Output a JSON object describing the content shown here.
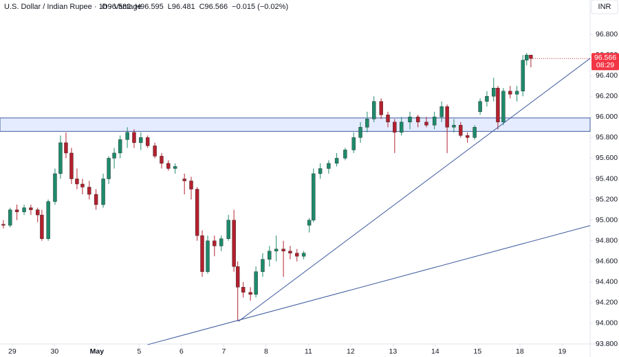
{
  "chart_data": {
    "type": "candlestick",
    "symbol": "U.S. Dollar / Indian Rupee · 1h · Vantage",
    "ohlc_text": [
      "O96.582",
      "H96.595",
      "L96.481",
      "C96.566",
      "−0.015 (−0.02%)"
    ],
    "currency": "INR",
    "last_price": 96.566,
    "countdown": "08:29",
    "up_color": "#1e8a6b",
    "down_color": "#b3202e",
    "x": [
      -0.21,
      -0.05,
      0.11,
      0.28,
      0.44,
      0.6,
      0.7,
      0.85,
      1.01,
      1.14,
      1.27,
      1.4,
      1.53,
      1.66,
      1.82,
      1.98,
      2.15,
      2.28,
      2.41,
      2.55,
      2.72,
      2.88,
      3.04,
      3.2,
      3.37,
      3.53,
      3.69,
      3.85,
      4.07,
      4.23,
      4.37,
      4.49,
      4.62,
      4.78,
      4.94,
      5.11,
      5.24,
      5.33,
      5.46,
      5.63,
      5.76,
      5.92,
      6.08,
      6.24,
      6.41,
      6.57,
      6.73,
      6.89,
      7.02,
      7.12,
      7.28,
      7.48,
      7.67,
      7.87,
      8.07,
      8.23,
      8.39,
      8.55,
      8.72,
      8.88,
      9.04,
      9.2,
      9.4,
      9.59,
      9.79,
      9.98,
      10.15,
      10.28,
      10.44,
      10.6,
      10.76,
      10.93,
      11.06,
      11.22,
      11.38,
      11.48,
      11.61,
      11.77,
      11.93,
      12.07,
      12.16,
      12.26
    ],
    "open": [
      94.96,
      94.95,
      95.1,
      95.08,
      95.12,
      95.1,
      95.05,
      94.82,
      95.18,
      95.45,
      95.75,
      95.65,
      95.4,
      95.35,
      95.32,
      95.25,
      95.15,
      95.4,
      95.6,
      95.65,
      95.78,
      95.85,
      95.75,
      95.8,
      95.72,
      95.62,
      95.55,
      95.5,
      95.4,
      95.38,
      95.3,
      94.85,
      94.5,
      94.8,
      94.75,
      94.82,
      95.0,
      94.55,
      94.35,
      94.3,
      94.28,
      94.5,
      94.62,
      94.7,
      94.72,
      94.7,
      94.68,
      94.65,
      94.95,
      95.0,
      95.45,
      95.5,
      95.55,
      95.6,
      95.68,
      95.8,
      95.9,
      95.98,
      96.15,
      96.02,
      95.95,
      95.85,
      95.95,
      96.0,
      95.95,
      95.92,
      96.0,
      96.1,
      95.9,
      95.92,
      95.82,
      95.8,
      96.05,
      96.15,
      96.2,
      96.28,
      95.95,
      96.25,
      96.22,
      96.25,
      96.55,
      96.6
    ],
    "high": [
      95.0,
      95.12,
      95.15,
      95.15,
      95.15,
      95.12,
      95.1,
      95.2,
      95.5,
      95.82,
      95.85,
      95.7,
      95.5,
      95.4,
      95.38,
      95.3,
      95.45,
      95.62,
      95.7,
      95.82,
      95.9,
      95.88,
      95.85,
      95.82,
      95.75,
      95.65,
      95.58,
      95.55,
      95.45,
      95.42,
      95.32,
      94.9,
      94.85,
      94.85,
      94.85,
      95.05,
      95.1,
      94.6,
      94.4,
      94.35,
      94.55,
      94.68,
      94.75,
      94.85,
      94.8,
      94.75,
      94.72,
      94.7,
      95.02,
      95.5,
      95.55,
      95.58,
      95.65,
      95.7,
      95.85,
      95.95,
      96.05,
      96.2,
      96.18,
      96.05,
      95.98,
      96.0,
      96.05,
      96.02,
      96.0,
      96.05,
      96.15,
      96.12,
      95.98,
      95.95,
      95.85,
      95.92,
      96.18,
      96.25,
      96.38,
      96.3,
      96.28,
      96.3,
      96.3,
      96.6,
      96.62,
      96.6
    ],
    "low": [
      94.92,
      94.93,
      95.0,
      95.05,
      95.05,
      94.98,
      94.8,
      94.8,
      95.15,
      95.4,
      95.6,
      95.35,
      95.3,
      95.25,
      95.2,
      95.1,
      95.12,
      95.35,
      95.5,
      95.6,
      95.7,
      95.7,
      95.68,
      95.7,
      95.6,
      95.5,
      95.48,
      95.45,
      95.25,
      95.2,
      94.8,
      94.45,
      94.48,
      94.65,
      94.7,
      94.8,
      94.5,
      94.02,
      94.25,
      94.22,
      94.25,
      94.45,
      94.55,
      94.6,
      94.45,
      94.62,
      94.6,
      94.62,
      94.88,
      94.98,
      95.4,
      95.45,
      95.52,
      95.58,
      95.65,
      95.75,
      95.85,
      95.95,
      95.98,
      95.9,
      95.65,
      95.82,
      95.88,
      95.9,
      95.9,
      95.88,
      95.95,
      95.65,
      95.85,
      95.8,
      95.75,
      95.78,
      96.02,
      96.1,
      96.15,
      95.88,
      95.92,
      96.18,
      96.15,
      96.2,
      96.5,
      96.48
    ],
    "close": [
      94.95,
      95.1,
      95.08,
      95.12,
      95.1,
      95.05,
      94.82,
      95.18,
      95.45,
      95.75,
      95.65,
      95.4,
      95.35,
      95.32,
      95.25,
      95.15,
      95.4,
      95.6,
      95.65,
      95.78,
      95.85,
      95.75,
      95.8,
      95.72,
      95.62,
      95.55,
      95.5,
      95.52,
      95.38,
      95.3,
      94.85,
      94.5,
      94.8,
      94.75,
      94.82,
      95.0,
      94.55,
      94.35,
      94.3,
      94.28,
      94.5,
      94.62,
      94.7,
      94.72,
      94.7,
      94.68,
      94.65,
      94.68,
      95.0,
      95.45,
      95.5,
      95.55,
      95.6,
      95.68,
      95.8,
      95.9,
      95.98,
      96.15,
      96.02,
      95.95,
      95.85,
      95.95,
      96.0,
      95.95,
      95.92,
      96.0,
      96.1,
      95.9,
      95.92,
      95.82,
      95.8,
      95.9,
      96.15,
      96.2,
      96.28,
      95.95,
      96.25,
      96.22,
      96.25,
      96.55,
      96.6,
      96.566
    ],
    "zone": {
      "y0": 95.86,
      "y1": 95.99,
      "color": "#2962ff"
    },
    "trendlines": [
      {
        "x1": 5.35,
        "y1": 94.02,
        "x2": 13.66,
        "y2": 96.567,
        "color": "#3d5a9e"
      },
      {
        "x1": 3.2,
        "y1": 93.793,
        "x2": 13.66,
        "y2": 94.947,
        "color": "#3d5a9e"
      }
    ],
    "xlim": [
      -0.29,
      13.66
    ],
    "ylim": [
      93.8,
      97.133
    ],
    "xticks": [
      {
        "value": 0,
        "label": "29"
      },
      {
        "value": 1,
        "label": "30"
      },
      {
        "value": 2,
        "label": "May"
      },
      {
        "value": 3,
        "label": "5"
      },
      {
        "value": 4,
        "label": "6"
      },
      {
        "value": 5,
        "label": "7"
      },
      {
        "value": 6,
        "label": "8"
      },
      {
        "value": 7,
        "label": "11"
      },
      {
        "value": 8,
        "label": "12"
      },
      {
        "value": 9,
        "label": "13"
      },
      {
        "value": 10,
        "label": "14"
      },
      {
        "value": 11,
        "label": "15"
      },
      {
        "value": 12,
        "label": "18"
      },
      {
        "value": 13,
        "label": "19"
      }
    ],
    "yticks": [
      {
        "value": 93.8,
        "label": "93.800"
      },
      {
        "value": 94.0,
        "label": "94.000"
      },
      {
        "value": 94.2,
        "label": "94.200"
      },
      {
        "value": 94.4,
        "label": "94.400"
      },
      {
        "value": 94.6,
        "label": "94.600"
      },
      {
        "value": 94.8,
        "label": "94.800"
      },
      {
        "value": 95.0,
        "label": "95.000"
      },
      {
        "value": 95.2,
        "label": "95.200"
      },
      {
        "value": 95.4,
        "label": "95.400"
      },
      {
        "value": 95.6,
        "label": "95.600"
      },
      {
        "value": 95.8,
        "label": "95.800"
      },
      {
        "value": 96.0,
        "label": "96.000"
      },
      {
        "value": 96.2,
        "label": "96.200"
      },
      {
        "value": 96.4,
        "label": "96.400"
      },
      {
        "value": 96.6,
        "label": "96.600"
      },
      {
        "value": 96.8,
        "label": "96.800"
      }
    ]
  }
}
